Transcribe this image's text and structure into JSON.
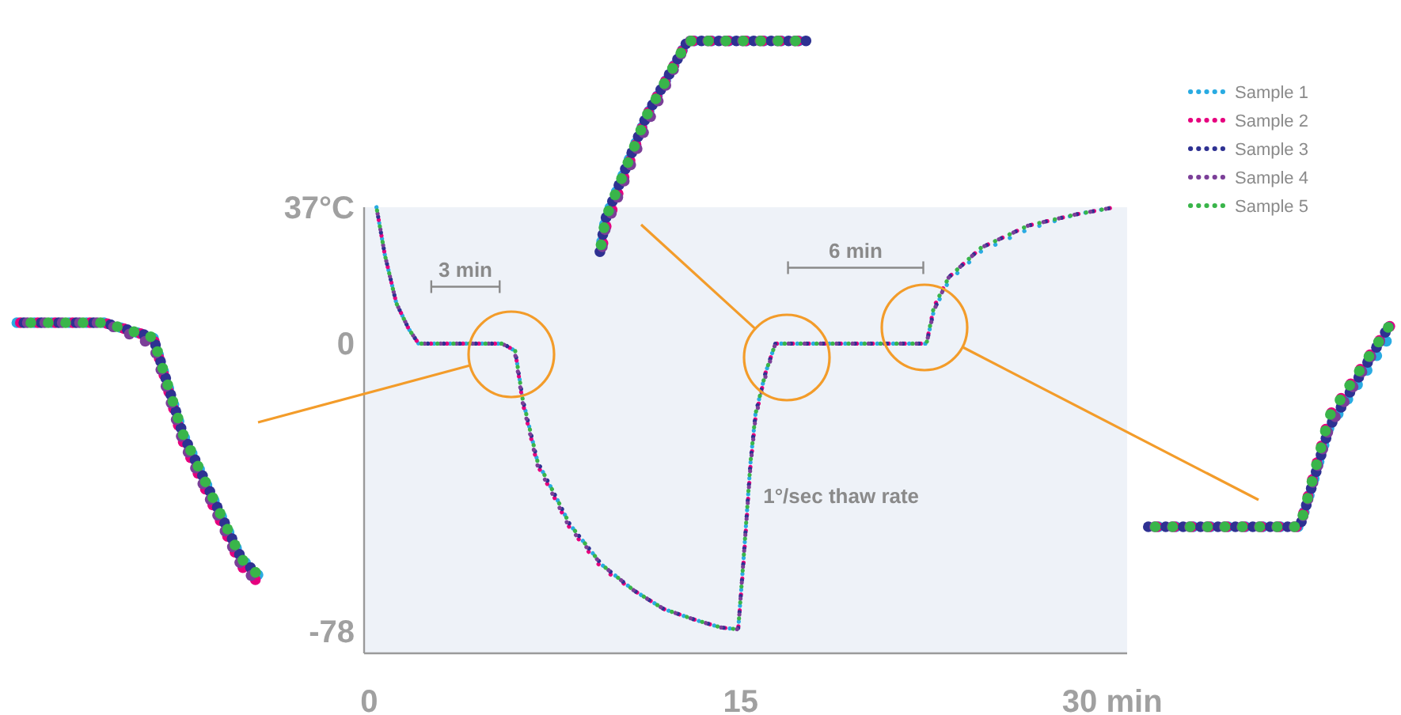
{
  "chart_data": {
    "type": "line",
    "xlim": [
      -0.2,
      30.6
    ],
    "ylim": [
      -84,
      37
    ],
    "xticks": [
      0,
      15,
      {
        "value": 30,
        "label": "30 min"
      }
    ],
    "yticks": [
      {
        "value": 37,
        "label": "37°C"
      },
      0,
      -78
    ],
    "legend": "top right",
    "line_style": "dotted",
    "marker": "none",
    "grid": false,
    "x": [
      0.3,
      0.64,
      1.1,
      1.6,
      2.0,
      3.0,
      4.3,
      5.4,
      5.9,
      6.2,
      6.8,
      7.5,
      8.1,
      9.4,
      10.7,
      11.9,
      13.2,
      14.2,
      14.9,
      15.1,
      15.4,
      15.6,
      16.0,
      16.4,
      18.3,
      20.9,
      22.5,
      22.8,
      23.4,
      24.7,
      26.6,
      28.5,
      30.1
    ],
    "series": [
      {
        "name": "Sample 1",
        "color": "#29abe2",
        "values": [
          37,
          24,
          11,
          4,
          0,
          0,
          0,
          0,
          -2,
          -15,
          -32,
          -41,
          -49,
          -60,
          -67,
          -72,
          -75,
          -77,
          -77.5,
          -60,
          -32,
          -19,
          -8,
          0,
          0,
          0,
          0,
          9,
          17,
          25,
          31,
          35,
          37
        ]
      },
      {
        "name": "Sample 2",
        "color": "#e6007e",
        "values": [
          37,
          24,
          11,
          4,
          0,
          0,
          0,
          0,
          -2,
          -16,
          -33,
          -42,
          -50,
          -61,
          -67,
          -72,
          -75,
          -77,
          -77.5,
          -61,
          -33,
          -20,
          -8,
          0,
          0,
          0,
          0,
          10,
          18,
          26,
          32,
          35,
          37
        ]
      },
      {
        "name": "Sample 3",
        "color": "#2e3192",
        "values": [
          37,
          24,
          11,
          4,
          0,
          0,
          0,
          0,
          -2,
          -15,
          -32,
          -41,
          -49,
          -60,
          -67,
          -72,
          -75,
          -77,
          -77.5,
          -60,
          -32,
          -19,
          -8,
          0,
          0,
          0,
          0,
          9,
          18,
          26,
          32,
          35,
          37
        ]
      },
      {
        "name": "Sample 4",
        "color": "#7b3f98",
        "values": [
          37,
          24,
          11,
          4,
          0,
          0,
          0,
          0,
          -3,
          -16,
          -33,
          -42,
          -50,
          -60,
          -67,
          -72,
          -75,
          -77,
          -77.5,
          -60,
          -33,
          -20,
          -9,
          0,
          0,
          0,
          0,
          9,
          18,
          26,
          32,
          35,
          37
        ]
      },
      {
        "name": "Sample 5",
        "color": "#39b54a",
        "values": [
          37,
          24,
          11,
          4,
          0,
          0,
          0,
          0,
          -2,
          -15,
          -32,
          -41,
          -49,
          -60,
          -67,
          -72,
          -75,
          -77,
          -77.5,
          -60,
          -32,
          -19,
          -8,
          0,
          0,
          0,
          0,
          10,
          18,
          26,
          32,
          35,
          37
        ]
      }
    ],
    "annotations": [
      "3 min",
      "6 min",
      "1°/sec thaw rate"
    ]
  }
}
